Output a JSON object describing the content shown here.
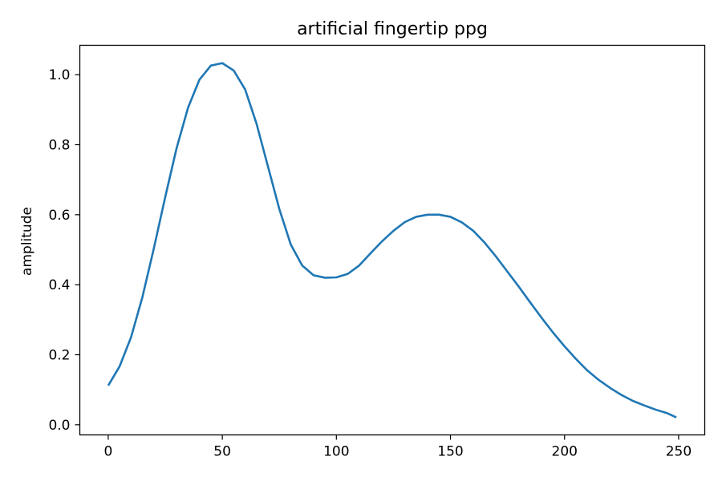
{
  "chart_data": {
    "type": "line",
    "title": "artificial fingertip ppg",
    "xlabel": "",
    "ylabel": "amplitude",
    "xlim": [
      -12.45,
      261.45
    ],
    "ylim": [
      -0.029,
      1.084
    ],
    "xticks": [
      0,
      50,
      100,
      150,
      200,
      250
    ],
    "xtick_labels": [
      "0",
      "50",
      "100",
      "150",
      "200",
      "250"
    ],
    "yticks": [
      0.0,
      0.2,
      0.4,
      0.6,
      0.8,
      1.0
    ],
    "ytick_labels": [
      "0.0",
      "0.2",
      "0.4",
      "0.6",
      "0.8",
      "1.0"
    ],
    "grid": false,
    "series": [
      {
        "color": "#1f77b4",
        "x": [
          0,
          5,
          10,
          15,
          20,
          25,
          30,
          35,
          40,
          45,
          50,
          55,
          60,
          65,
          70,
          75,
          80,
          85,
          90,
          95,
          100,
          105,
          110,
          115,
          120,
          125,
          130,
          135,
          140,
          145,
          150,
          155,
          160,
          165,
          170,
          175,
          180,
          185,
          190,
          195,
          200,
          205,
          210,
          215,
          220,
          225,
          230,
          235,
          240,
          245,
          249
        ],
        "y": [
          0.112,
          0.167,
          0.25,
          0.365,
          0.504,
          0.651,
          0.791,
          0.906,
          0.986,
          1.026,
          1.033,
          1.012,
          0.958,
          0.86,
          0.738,
          0.616,
          0.515,
          0.455,
          0.427,
          0.42,
          0.421,
          0.431,
          0.455,
          0.49,
          0.524,
          0.554,
          0.579,
          0.594,
          0.6,
          0.6,
          0.594,
          0.578,
          0.554,
          0.52,
          0.48,
          0.437,
          0.394,
          0.349,
          0.305,
          0.263,
          0.224,
          0.188,
          0.155,
          0.128,
          0.105,
          0.085,
          0.068,
          0.055,
          0.043,
          0.033,
          0.021
        ]
      }
    ]
  }
}
